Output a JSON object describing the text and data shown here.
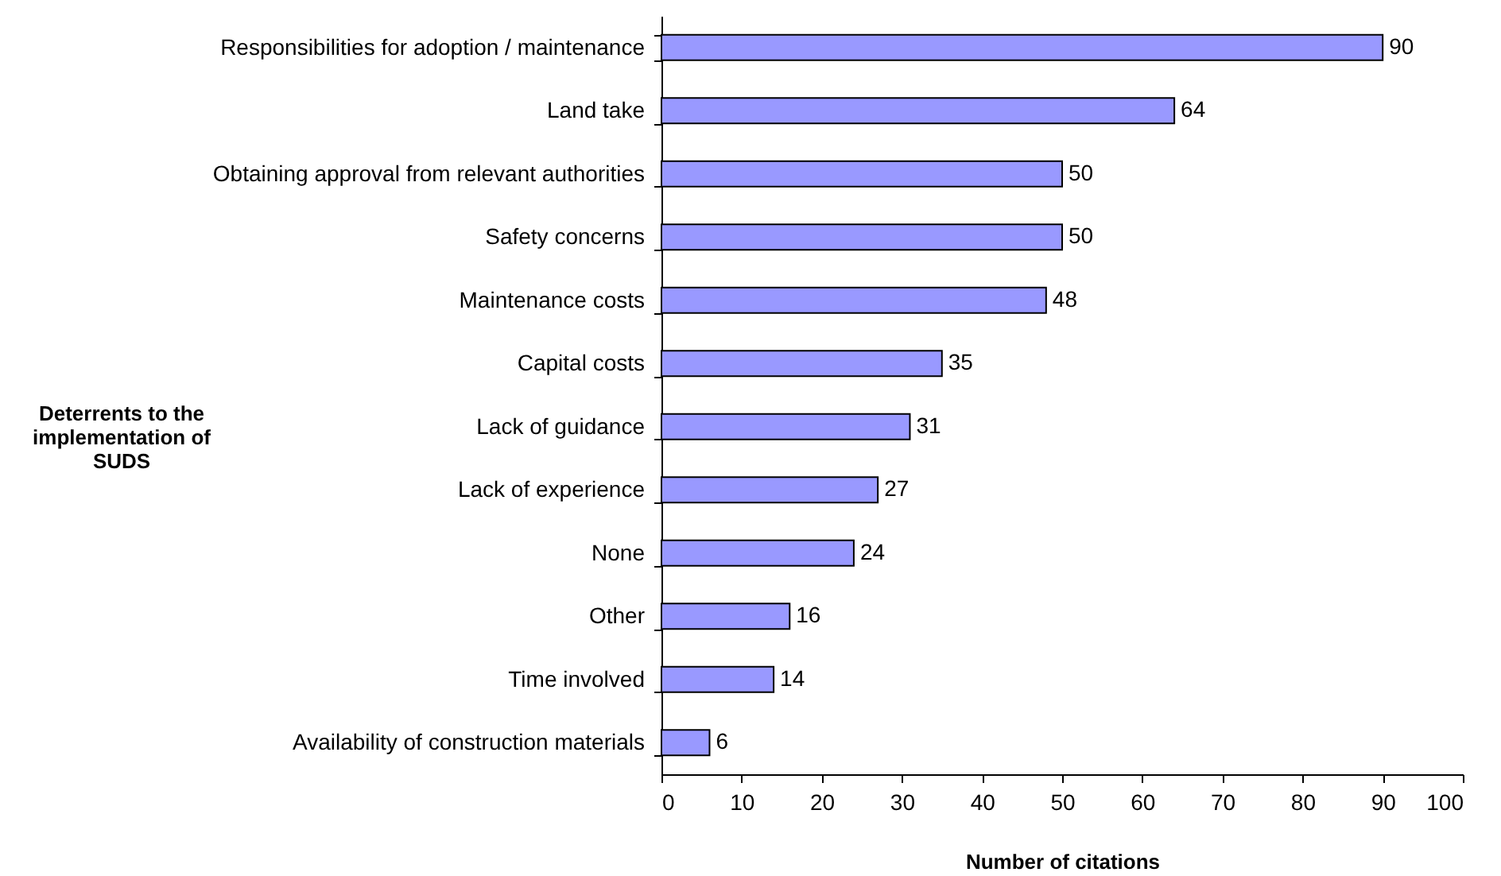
{
  "chart_data": {
    "type": "bar",
    "orientation": "horizontal",
    "ylabel": "Deterrents to the implementation of SUDS",
    "xlabel": "Number of citations",
    "categories": [
      "Responsibilities for adoption / maintenance",
      "Land take",
      "Obtaining approval from relevant authorities",
      "Safety concerns",
      "Maintenance costs",
      "Capital costs",
      "Lack of guidance",
      "Lack of experience",
      "None",
      "Other",
      "Time involved",
      "Availability of construction materials"
    ],
    "values": [
      90,
      64,
      50,
      50,
      48,
      35,
      31,
      27,
      24,
      16,
      14,
      6
    ],
    "color": "#9999ff",
    "data_labels": true,
    "grid": false,
    "xlim": [
      0,
      100
    ],
    "xticks": [
      0,
      10,
      20,
      30,
      40,
      50,
      60,
      70,
      80,
      90,
      100
    ]
  }
}
